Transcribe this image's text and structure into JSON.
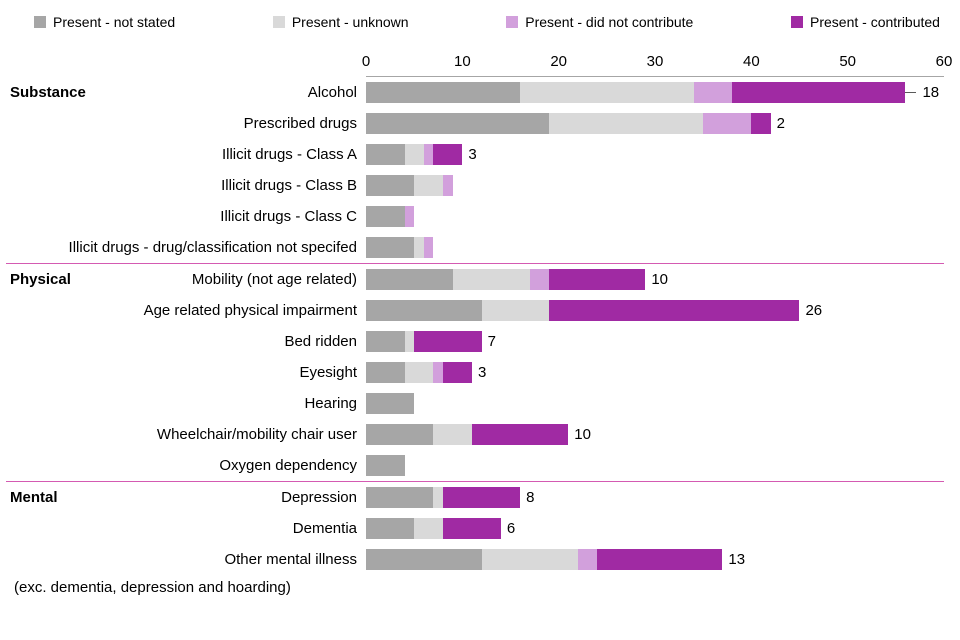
{
  "legend": {
    "items": [
      {
        "label": "Present - not stated",
        "color": "#a6a6a6"
      },
      {
        "label": "Present - unknown",
        "color": "#d9d9d9"
      },
      {
        "label": "Present - did not contribute",
        "color": "#d2a0dc"
      },
      {
        "label": "Present - contributed",
        "color": "#a02aa3"
      }
    ]
  },
  "chart_data": {
    "type": "bar",
    "orientation": "horizontal",
    "stacked": true,
    "x_axis": {
      "ticks": [
        0,
        10,
        20,
        30,
        40,
        50,
        60
      ],
      "max": 60
    },
    "series_names": [
      "Present - not stated",
      "Present - unknown",
      "Present - did not contribute",
      "Present - contributed"
    ],
    "divider_color": "#d45ab2",
    "groups": [
      {
        "name": "Substance",
        "rows": [
          {
            "label": "Alcohol",
            "values": [
              16,
              18,
              4,
              18
            ],
            "annotation": "18",
            "leader": true
          },
          {
            "label": "Prescribed drugs",
            "values": [
              19,
              16,
              5,
              2
            ],
            "annotation": "2"
          },
          {
            "label": "Illicit drugs - Class A",
            "values": [
              4,
              2,
              1,
              3
            ],
            "annotation": "3"
          },
          {
            "label": "Illicit drugs - Class B",
            "values": [
              5,
              3,
              1,
              0
            ],
            "annotation": ""
          },
          {
            "label": "Illicit drugs - Class C",
            "values": [
              4,
              0,
              1,
              0
            ],
            "annotation": ""
          },
          {
            "label": "Illicit drugs - drug/classification not specifed",
            "values": [
              5,
              1,
              1,
              0
            ],
            "annotation": ""
          }
        ]
      },
      {
        "name": "Physical",
        "rows": [
          {
            "label": "Mobility (not age related)",
            "values": [
              9,
              8,
              2,
              10
            ],
            "annotation": "10"
          },
          {
            "label": "Age related physical impairment",
            "values": [
              12,
              7,
              0,
              26
            ],
            "annotation": "26"
          },
          {
            "label": "Bed ridden",
            "values": [
              4,
              1,
              0,
              7
            ],
            "annotation": "7"
          },
          {
            "label": "Eyesight",
            "values": [
              4,
              3,
              1,
              3
            ],
            "annotation": "3"
          },
          {
            "label": "Hearing",
            "values": [
              5,
              0,
              0,
              0
            ],
            "annotation": ""
          },
          {
            "label": "Wheelchair/mobility chair user",
            "values": [
              7,
              4,
              0,
              10
            ],
            "annotation": "10"
          },
          {
            "label": "Oxygen dependency",
            "values": [
              4,
              0,
              0,
              0
            ],
            "annotation": ""
          }
        ]
      },
      {
        "name": "Mental",
        "rows": [
          {
            "label": "Depression",
            "values": [
              7,
              1,
              0,
              8
            ],
            "annotation": "8"
          },
          {
            "label": "Dementia",
            "values": [
              5,
              3,
              0,
              6
            ],
            "annotation": "6"
          },
          {
            "label": "Other mental illness",
            "values": [
              12,
              10,
              2,
              13
            ],
            "annotation": "13"
          }
        ]
      }
    ],
    "footnote": "(exc. dementia, depression and hoarding)"
  }
}
